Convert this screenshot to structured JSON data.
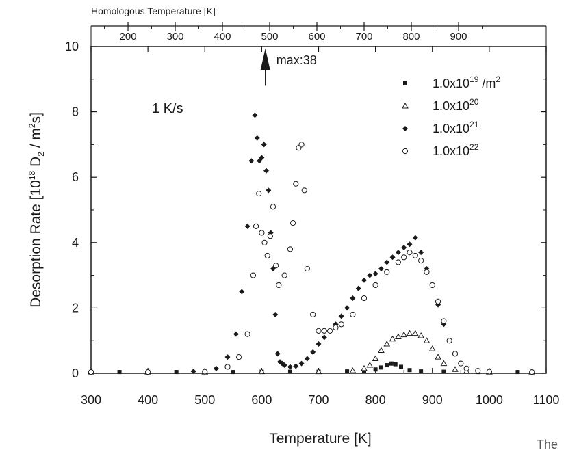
{
  "chart_data": {
    "type": "scatter",
    "xlabel": "Temperature   [K]",
    "ylabel": "Desorption Rate   [10",
    "ylabel_sup1": "18",
    "ylabel_mid": " D",
    "ylabel_sub": "2",
    "ylabel_tail": " / m",
    "ylabel_sup2": "2",
    "ylabel_end": "s]",
    "top_axis_label": "Homologous Temperature   [K]",
    "xlim": [
      300,
      1100
    ],
    "ylim": [
      0,
      10
    ],
    "x_ticks": [
      "300",
      "400",
      "500",
      "600",
      "700",
      "800",
      "900",
      "1000",
      "1100"
    ],
    "y_ticks": [
      "0",
      "2",
      "4",
      "6",
      "8",
      "10"
    ],
    "top_x_ticks": [
      {
        "value": 200,
        "label": "200"
      },
      {
        "value": 300,
        "label": "300"
      },
      {
        "value": 400,
        "label": "400"
      },
      {
        "value": 500,
        "label": "500"
      },
      {
        "value": 600,
        "label": "600"
      },
      {
        "value": 700,
        "label": "700"
      },
      {
        "value": 800,
        "label": "800"
      },
      {
        "value": 900,
        "label": "900"
      }
    ],
    "top_axis_map": {
      "a": 220,
      "b": 0.945
    },
    "annotation_rate": "1 K/s",
    "annotation_max": "max:38",
    "annotation_max_x": 610,
    "grid": false,
    "legend_position": "top-right",
    "series": [
      {
        "name": "1.0x10",
        "name_sup": "19",
        "name_suffix": " /m",
        "name_suffix_sup": "2",
        "marker": "filled-square",
        "x": [
          300,
          350,
          400,
          450,
          500,
          550,
          600,
          650,
          700,
          750,
          780,
          800,
          810,
          820,
          828,
          835,
          845,
          860,
          880,
          920,
          980,
          1050,
          1075
        ],
        "y": [
          0.04,
          0.04,
          0.04,
          0.04,
          0.04,
          0.04,
          0.05,
          0.05,
          0.05,
          0.06,
          0.08,
          0.12,
          0.18,
          0.25,
          0.3,
          0.28,
          0.2,
          0.1,
          0.06,
          0.05,
          0.04,
          0.04,
          0.04
        ]
      },
      {
        "name": "1.0x10",
        "name_sup": "20",
        "marker": "open-triangle",
        "x": [
          300,
          400,
          500,
          600,
          700,
          760,
          780,
          790,
          800,
          810,
          820,
          830,
          840,
          850,
          860,
          870,
          880,
          890,
          900,
          910,
          920,
          940,
          960,
          1000,
          1075
        ],
        "y": [
          0.04,
          0.04,
          0.04,
          0.05,
          0.05,
          0.08,
          0.15,
          0.25,
          0.45,
          0.7,
          0.9,
          1.05,
          1.12,
          1.18,
          1.22,
          1.22,
          1.15,
          1.0,
          0.75,
          0.5,
          0.3,
          0.12,
          0.06,
          0.04,
          0.04
        ]
      },
      {
        "name": "1.0x10",
        "name_sup": "21",
        "marker": "filled-diamond",
        "x": [
          300,
          400,
          480,
          520,
          540,
          555,
          565,
          575,
          582,
          588,
          592,
          596,
          600,
          604,
          608,
          612,
          616,
          620,
          624,
          628,
          632,
          636,
          640,
          650,
          660,
          670,
          680,
          690,
          700,
          710,
          720,
          730,
          740,
          750,
          760,
          770,
          780,
          790,
          800,
          810,
          820,
          830,
          840,
          850,
          860,
          870,
          880,
          890,
          900,
          910,
          920,
          930,
          940,
          950,
          960,
          1000,
          1075
        ],
        "y": [
          0.04,
          0.05,
          0.06,
          0.15,
          0.5,
          1.2,
          2.5,
          4.5,
          6.5,
          7.9,
          7.2,
          6.5,
          6.6,
          7.0,
          6.2,
          5.6,
          4.3,
          3.2,
          1.8,
          0.6,
          0.35,
          0.3,
          0.25,
          0.2,
          0.22,
          0.3,
          0.45,
          0.65,
          0.9,
          1.1,
          1.3,
          1.5,
          1.75,
          2.0,
          2.3,
          2.6,
          2.85,
          3.0,
          3.05,
          3.2,
          3.4,
          3.55,
          3.7,
          3.85,
          3.95,
          4.15,
          3.7,
          3.2,
          2.7,
          2.1,
          1.5,
          1.0,
          0.6,
          0.3,
          0.15,
          0.06,
          0.04
        ]
      },
      {
        "name": "1.0x10",
        "name_sup": "22",
        "marker": "open-circle",
        "x": [
          300,
          400,
          500,
          540,
          560,
          575,
          585,
          590,
          595,
          600,
          605,
          610,
          615,
          620,
          625,
          630,
          640,
          650,
          655,
          660,
          665,
          670,
          675,
          680,
          690,
          700,
          710,
          720,
          730,
          740,
          760,
          780,
          800,
          820,
          840,
          850,
          860,
          870,
          880,
          890,
          900,
          910,
          920,
          930,
          940,
          950,
          960,
          980,
          1000,
          1075
        ],
        "y": [
          0.04,
          0.04,
          0.05,
          0.2,
          0.5,
          1.2,
          3.0,
          4.5,
          5.5,
          4.3,
          4.0,
          3.6,
          4.2,
          5.1,
          3.3,
          2.7,
          3.0,
          3.8,
          4.6,
          5.8,
          6.9,
          7.0,
          5.6,
          3.2,
          1.8,
          1.3,
          1.3,
          1.3,
          1.4,
          1.5,
          1.8,
          2.3,
          2.7,
          3.1,
          3.4,
          3.55,
          3.7,
          3.6,
          3.45,
          3.1,
          2.7,
          2.2,
          1.6,
          1.0,
          0.6,
          0.3,
          0.15,
          0.08,
          0.05,
          0.04
        ]
      }
    ]
  },
  "page": {
    "cropped_text": "The"
  }
}
